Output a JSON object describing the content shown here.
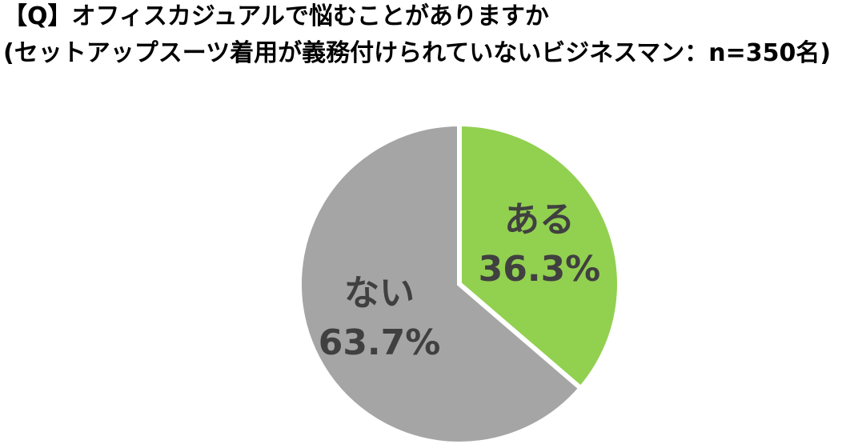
{
  "chart_data": {
    "type": "pie",
    "title": "【Q】オフィスカジュアルで悩むことがありますか",
    "subtitle": "(セットアップスーツ着用が義務付けられていないビジネスマン：n=350名)",
    "categories": [
      "ある",
      "ない"
    ],
    "values": [
      36.3,
      63.7
    ],
    "value_labels": [
      "36.3%",
      "63.7%"
    ],
    "colors": [
      "#92d050",
      "#a5a5a5"
    ]
  }
}
